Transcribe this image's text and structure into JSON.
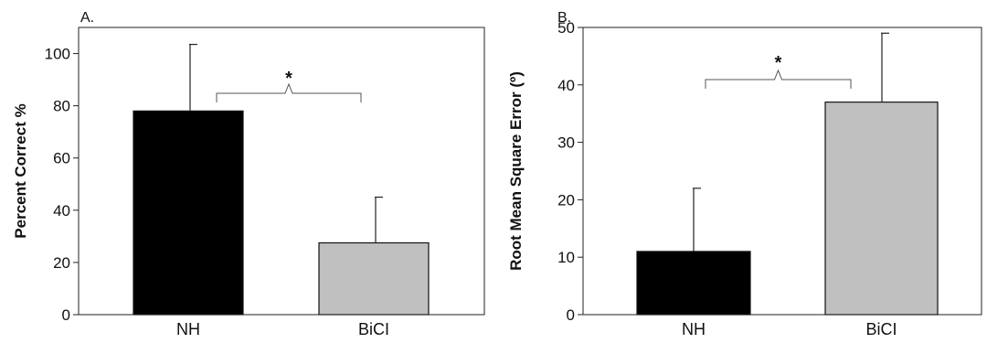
{
  "chart_data": [
    {
      "type": "bar",
      "panel_label": "A.",
      "categories": [
        "NH",
        "BiCI"
      ],
      "values": [
        78,
        27.5
      ],
      "error": [
        25.5,
        17.5
      ],
      "colors": [
        "#000000",
        "#c0c0c0"
      ],
      "ylabel": "Percent Correct %",
      "ylim": [
        0,
        110
      ],
      "yticks": [
        "0",
        "20",
        "40",
        "60",
        "80",
        "100"
      ],
      "grid": false,
      "significance": "*"
    },
    {
      "type": "bar",
      "panel_label": "B.",
      "categories": [
        "NH",
        "BiCI"
      ],
      "values": [
        11,
        37
      ],
      "error": [
        11,
        12
      ],
      "colors": [
        "#000000",
        "#c0c0c0"
      ],
      "ylabel": "Root Mean Square Error (º)",
      "ylim": [
        0,
        50
      ],
      "yticks": [
        "0",
        "10",
        "20",
        "30",
        "40",
        "50"
      ],
      "grid": false,
      "significance": "*"
    }
  ]
}
